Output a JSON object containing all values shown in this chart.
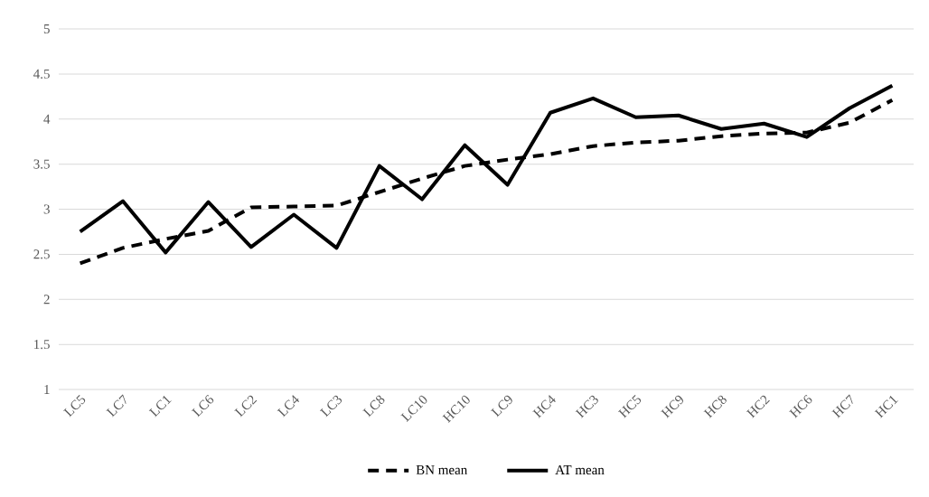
{
  "chart_data": {
    "type": "line",
    "categories": [
      "LC5",
      "LC7",
      "LC1",
      "LC6",
      "LC2",
      "LC4",
      "LC3",
      "LC8",
      "LC10",
      "HC10",
      "LC9",
      "HC4",
      "HC3",
      "HC5",
      "HC9",
      "HC8",
      "HC2",
      "HC6",
      "HC7",
      "HC1"
    ],
    "series": [
      {
        "name": "BN mean",
        "color": "#000000",
        "line_style": "dashed",
        "values": [
          2.4,
          2.57,
          2.67,
          2.76,
          3.02,
          3.03,
          3.04,
          3.19,
          3.34,
          3.48,
          3.55,
          3.61,
          3.7,
          3.74,
          3.76,
          3.81,
          3.84,
          3.85,
          3.96,
          4.21
        ]
      },
      {
        "name": "AT mean",
        "color": "#000000",
        "line_style": "solid",
        "values": [
          2.75,
          3.09,
          2.52,
          3.08,
          2.58,
          2.94,
          2.57,
          3.48,
          3.11,
          3.71,
          3.27,
          4.07,
          4.23,
          4.02,
          4.04,
          3.89,
          3.95,
          3.8,
          4.12,
          4.37
        ]
      }
    ],
    "ylim": [
      1,
      5
    ],
    "yticks": [
      1,
      1.5,
      2,
      2.5,
      3,
      3.5,
      4,
      4.5,
      5
    ],
    "grid": "y",
    "legend": "bottom"
  }
}
